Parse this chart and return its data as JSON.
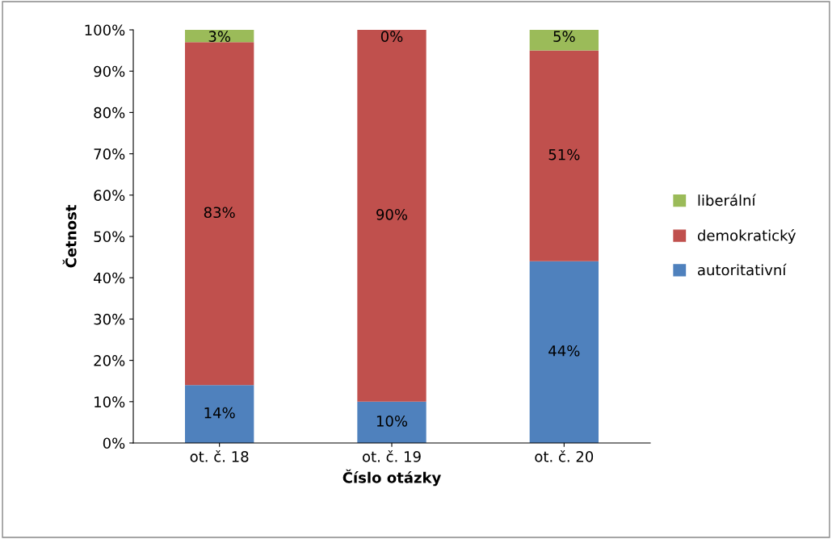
{
  "chart_data": {
    "type": "bar",
    "stacked": true,
    "xlabel": "Číslo otázky",
    "ylabel": "Četnost",
    "categories": [
      "ot. č. 18",
      "ot. č. 19",
      "ot. č. 20"
    ],
    "series": [
      {
        "name": "autoritativní",
        "color": "#4f81bd",
        "values": [
          14,
          10,
          44
        ],
        "value_labels": [
          "14%",
          "10%",
          "44%"
        ]
      },
      {
        "name": "demokratický",
        "color": "#c0504d",
        "values": [
          83,
          90,
          51
        ],
        "value_labels": [
          "83%",
          "90%",
          "51%"
        ]
      },
      {
        "name": "liberální",
        "color": "#9bbb59",
        "values": [
          3,
          0,
          5
        ],
        "value_labels": [
          "3%",
          "0%",
          "5%"
        ]
      }
    ],
    "ylim": [
      0,
      100
    ],
    "yticks": [
      {
        "value": 0,
        "label": "0%"
      },
      {
        "value": 10,
        "label": "10%"
      },
      {
        "value": 20,
        "label": "20%"
      },
      {
        "value": 30,
        "label": "30%"
      },
      {
        "value": 40,
        "label": "40%"
      },
      {
        "value": 50,
        "label": "50%"
      },
      {
        "value": 60,
        "label": "60%"
      },
      {
        "value": 70,
        "label": "70%"
      },
      {
        "value": 80,
        "label": "80%"
      },
      {
        "value": 90,
        "label": "90%"
      },
      {
        "value": 100,
        "label": "100%"
      }
    ],
    "grid": false,
    "legend": "right"
  }
}
